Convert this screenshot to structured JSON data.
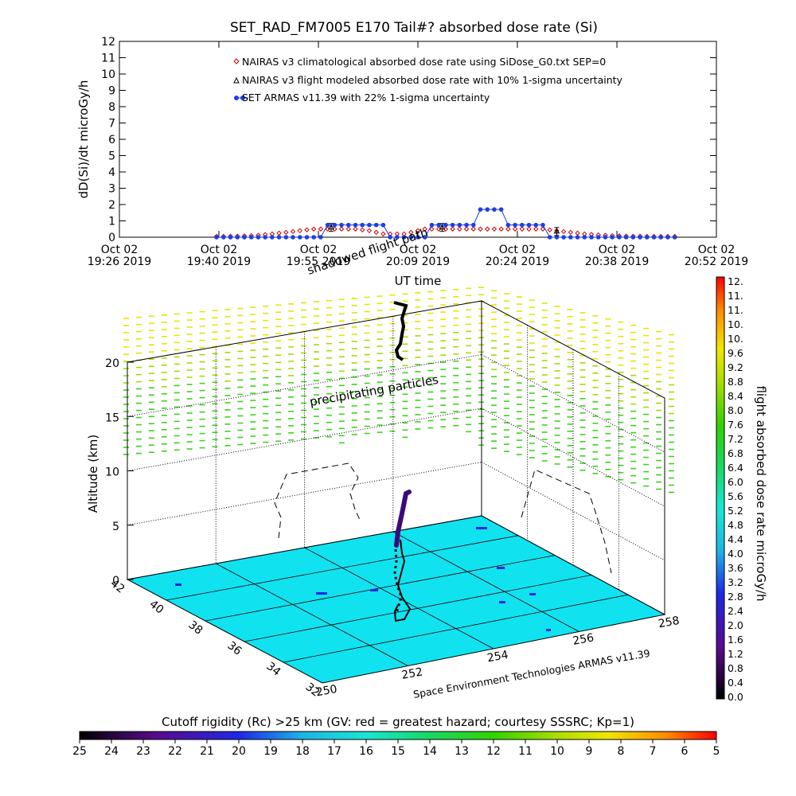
{
  "chart_data": [
    {
      "type": "line",
      "title": "SET_RAD_FM7005  E170 Tail#? absorbed dose rate (Si)",
      "xlabel": "UT time",
      "ylabel": "dD(Si)/dt microGy/h",
      "ylim": [
        0,
        12
      ],
      "yticks": [
        "0",
        "1",
        "2",
        "3",
        "4",
        "5",
        "6",
        "7",
        "8",
        "9",
        "10",
        "11",
        "12"
      ],
      "xlim_minutes": [
        0,
        86
      ],
      "xticks": [
        {
          "minute": 0,
          "line1": "Oct 02",
          "line2": "19:26 2019"
        },
        {
          "minute": 14.33,
          "line1": "Oct 02",
          "line2": "19:40 2019"
        },
        {
          "minute": 28.67,
          "line1": "Oct 02",
          "line2": "19:55 2019"
        },
        {
          "minute": 43,
          "line1": "Oct 02",
          "line2": "20:09 2019"
        },
        {
          "minute": 57.33,
          "line1": "Oct 02",
          "line2": "20:24 2019"
        },
        {
          "minute": 71.67,
          "line1": "Oct 02",
          "line2": "20:38 2019"
        },
        {
          "minute": 86,
          "line1": "Oct 02",
          "line2": "20:52 2019"
        }
      ],
      "legend_position": "top-center",
      "series": [
        {
          "name": "NAIRAS v3 climatological absorbed dose rate using SiDose_G0.txt SEP=0",
          "marker": "diamond-open",
          "color": "#cc0000",
          "x": [
            14,
            15,
            16,
            17,
            18,
            19,
            20,
            21,
            22,
            23,
            24,
            25,
            26,
            27,
            28,
            29,
            30,
            31,
            32,
            33,
            34,
            35,
            36,
            37,
            38,
            39,
            40,
            41,
            42,
            43,
            44,
            45,
            46,
            47,
            48,
            49,
            50,
            51,
            52,
            53,
            54,
            55,
            56,
            57,
            58,
            59,
            60,
            61,
            62,
            63,
            64,
            65,
            66,
            67,
            68,
            69,
            70,
            71,
            72,
            73,
            74,
            75,
            76,
            77,
            78,
            79,
            80
          ],
          "values": [
            0.05,
            0.05,
            0.06,
            0.06,
            0.08,
            0.1,
            0.12,
            0.16,
            0.2,
            0.25,
            0.3,
            0.35,
            0.4,
            0.45,
            0.5,
            0.5,
            0.5,
            0.5,
            0.5,
            0.5,
            0.5,
            0.45,
            0.4,
            0.3,
            0.2,
            0.2,
            0.2,
            0.2,
            0.3,
            0.4,
            0.5,
            0.5,
            0.5,
            0.5,
            0.5,
            0.5,
            0.5,
            0.5,
            0.5,
            0.5,
            0.5,
            0.5,
            0.5,
            0.5,
            0.5,
            0.5,
            0.5,
            0.5,
            0.45,
            0.4,
            0.35,
            0.3,
            0.25,
            0.2,
            0.17,
            0.14,
            0.12,
            0.1,
            0.08,
            0.07,
            0.06,
            0.06,
            0.05,
            0.05,
            0.05,
            0.05,
            0.05
          ]
        },
        {
          "name": "NAIRAS v3 flight modeled absorbed dose rate with 10% 1-sigma uncertainty",
          "marker": "triangle-open",
          "color": "#000000",
          "x": [
            30.5,
            46.5,
            63
          ],
          "values": [
            0.6,
            0.6,
            0.35
          ]
        },
        {
          "name": "SET ARMAS v11.39 with 22% 1-sigma uncertainty",
          "marker": "filled-circle",
          "color": "#1f3fe0",
          "x": [
            14,
            15,
            16,
            17,
            18,
            19,
            20,
            21,
            22,
            23,
            24,
            25,
            26,
            27,
            28,
            29,
            30,
            31,
            32,
            33,
            34,
            35,
            36,
            37,
            38,
            39,
            40,
            41,
            42,
            43,
            44,
            45,
            46,
            47,
            48,
            49,
            50,
            51,
            52,
            53,
            54,
            55,
            56,
            57,
            58,
            59,
            60,
            61,
            62,
            63,
            64,
            65,
            66,
            67,
            68,
            69,
            70,
            71,
            72,
            73,
            74,
            75,
            76,
            77,
            78,
            79,
            80
          ],
          "values": [
            0,
            0,
            0,
            0,
            0,
            0,
            0,
            0,
            0,
            0,
            0,
            0,
            0,
            0,
            0,
            0,
            0.75,
            0.75,
            0.75,
            0.75,
            0.75,
            0.75,
            0.75,
            0.75,
            0.75,
            0,
            0,
            0,
            0,
            0,
            0,
            0.75,
            0.75,
            0.75,
            0.75,
            0.75,
            0.75,
            0.75,
            1.7,
            1.7,
            1.7,
            1.7,
            0.75,
            0.75,
            0.75,
            0.75,
            0.75,
            0.75,
            0,
            0,
            0,
            0,
            0,
            0,
            0,
            0,
            0,
            0,
            0,
            0,
            0,
            0,
            0,
            0,
            0,
            0,
            0
          ]
        }
      ]
    },
    {
      "type": "scatter",
      "zlabel": "Altitude (km)",
      "zticks": [
        "0",
        "5",
        "10",
        "15",
        "20"
      ],
      "yticks": [
        "32",
        "34",
        "36",
        "38",
        "40",
        "42"
      ],
      "xticks": [
        "250",
        "252",
        "254",
        "256",
        "258"
      ],
      "credit": "Space Environment Technologies ARMAS v11.39",
      "annotations": {
        "shadowed_flight_path": "shadowed flight path",
        "precipitating_particles": "precipitating particles"
      },
      "flight_colorbar": {
        "label": "flight absorbed dose rate microGy/h",
        "ticks": [
          "0.0",
          "0.4",
          "0.8",
          "1.2",
          "1.6",
          "2.0",
          "2.4",
          "2.8",
          "3.2",
          "3.6",
          "4.0",
          "4.4",
          "4.8",
          "5.2",
          "5.6",
          "6.0",
          "6.4",
          "6.8",
          "7.2",
          "7.6",
          "8.0",
          "8.4",
          "8.8",
          "9.2",
          "9.6",
          "10.",
          "10.",
          "11.",
          "11.",
          "12."
        ]
      },
      "rigidity_colorbar": {
        "label": "Cutoff rigidity (Rc) >25 km (GV: red = greatest hazard; courtesy SSSRC; Kp=1)",
        "ticks": [
          "25",
          "24",
          "23",
          "22",
          "21",
          "20",
          "19",
          "18",
          "17",
          "16",
          "15",
          "14",
          "13",
          "12",
          "11",
          "10",
          "9",
          "8",
          "7",
          "6",
          "5"
        ]
      }
    }
  ]
}
